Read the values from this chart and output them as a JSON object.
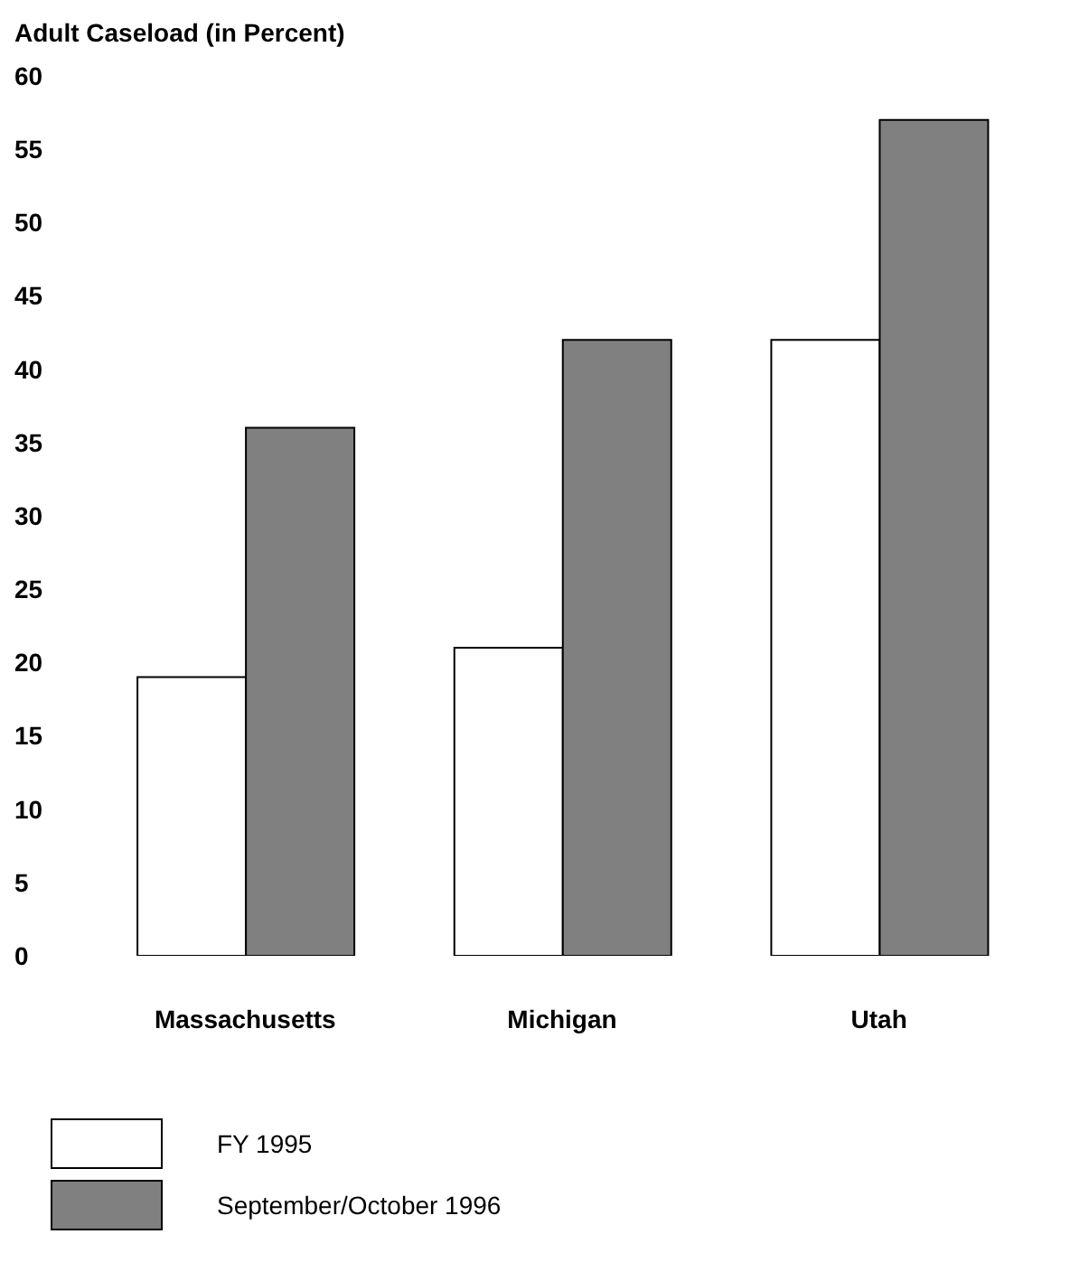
{
  "chart_data": {
    "type": "bar",
    "title": "Adult Caseload (in Percent)",
    "categories": [
      "Massachusetts",
      "Michigan",
      "Utah"
    ],
    "series": [
      {
        "name": "FY 1995",
        "color": "#ffffff",
        "values": [
          19,
          21,
          42
        ]
      },
      {
        "name": "September/October 1996",
        "color": "#808080",
        "values": [
          36,
          42,
          57
        ]
      }
    ],
    "ylim": [
      0,
      60
    ],
    "yticks": [
      0,
      5,
      10,
      15,
      20,
      25,
      30,
      35,
      40,
      45,
      50,
      55,
      60
    ],
    "grid": false,
    "legend": "bottom"
  }
}
